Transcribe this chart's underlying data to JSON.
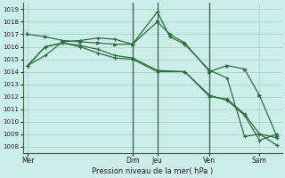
{
  "xlabel": "Pression niveau de la mer( hPa )",
  "background_color": "#cceee8",
  "grid_color": "#aad4cc",
  "line_color": "#2d6e3a",
  "vline_color": "#3a6040",
  "ylim": [
    1007.5,
    1019.5
  ],
  "yticks": [
    1008,
    1009,
    1010,
    1011,
    1012,
    1013,
    1014,
    1015,
    1016,
    1017,
    1018,
    1019
  ],
  "day_labels": [
    "Mer",
    "Dim",
    "Jeu",
    "Ven",
    "Sam"
  ],
  "day_positions": [
    0.0,
    0.42,
    0.52,
    0.73,
    0.93
  ],
  "vline_positions": [
    0.42,
    0.52,
    0.73
  ],
  "line1_x": [
    0.0,
    0.07,
    0.14,
    0.21,
    0.28,
    0.35,
    0.42,
    0.52,
    0.57,
    0.63,
    0.73,
    0.8,
    0.87,
    0.93,
    1.0
  ],
  "line1_y": [
    1014.5,
    1015.3,
    1016.4,
    1016.5,
    1016.7,
    1016.6,
    1016.2,
    1018.8,
    1016.8,
    1016.2,
    1014.1,
    1013.5,
    1008.8,
    1009.0,
    1008.7
  ],
  "line2_x": [
    0.0,
    0.07,
    0.14,
    0.21,
    0.28,
    0.35,
    0.42,
    0.52,
    0.57,
    0.63,
    0.73,
    0.8,
    0.87,
    0.93,
    1.0
  ],
  "line2_y": [
    1017.0,
    1016.8,
    1016.5,
    1016.4,
    1016.3,
    1016.2,
    1016.2,
    1018.0,
    1017.0,
    1016.3,
    1014.0,
    1014.5,
    1014.2,
    1012.1,
    1008.8
  ],
  "line3_x": [
    0.0,
    0.07,
    0.14,
    0.21,
    0.28,
    0.35,
    0.42,
    0.52,
    0.63,
    0.73,
    0.8,
    0.87,
    0.93,
    1.0
  ],
  "line3_y": [
    1014.5,
    1016.0,
    1016.3,
    1016.1,
    1015.8,
    1015.3,
    1015.1,
    1014.1,
    1014.0,
    1012.0,
    1011.8,
    1010.6,
    1009.0,
    1008.1
  ],
  "line4_x": [
    0.0,
    0.07,
    0.14,
    0.21,
    0.28,
    0.35,
    0.42,
    0.52,
    0.63,
    0.73,
    0.8,
    0.87,
    0.93,
    1.0
  ],
  "line4_y": [
    1014.5,
    1016.0,
    1016.3,
    1016.0,
    1015.5,
    1015.1,
    1015.0,
    1014.0,
    1014.0,
    1012.1,
    1011.7,
    1010.5,
    1008.5,
    1009.0
  ]
}
